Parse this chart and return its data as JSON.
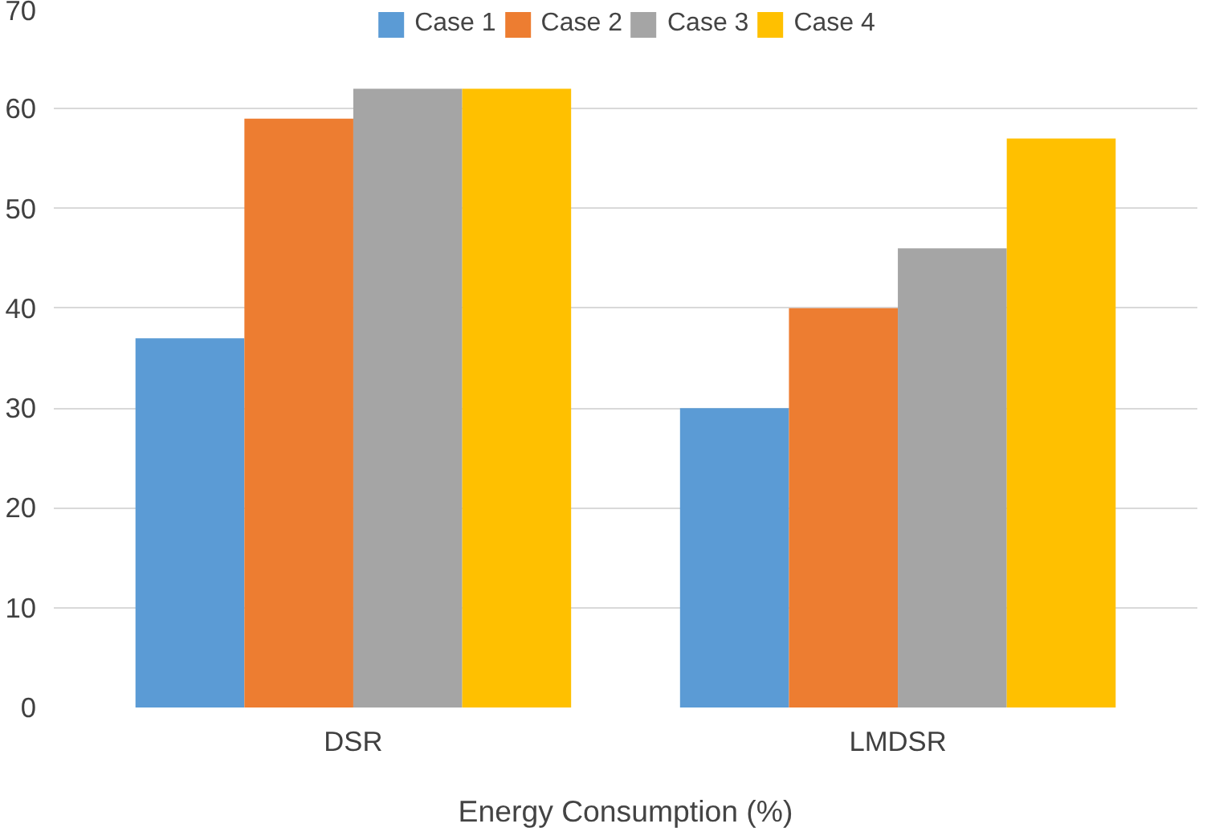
{
  "chart_data": {
    "type": "bar",
    "xlabel": "Energy Consumption (%)",
    "categories": [
      "DSR",
      "LMDSR"
    ],
    "series": [
      {
        "name": "Case 1",
        "color": "#5b9bd5",
        "values": [
          37,
          30
        ]
      },
      {
        "name": "Case 2",
        "color": "#ed7d31",
        "values": [
          59,
          40
        ]
      },
      {
        "name": "Case 3",
        "color": "#a5a5a5",
        "values": [
          62,
          46
        ]
      },
      {
        "name": "Case 4",
        "color": "#ffc000",
        "values": [
          62,
          57
        ]
      }
    ],
    "ylim": [
      0,
      70
    ],
    "yticks": [
      0,
      10,
      20,
      30,
      40,
      50,
      60,
      70
    ],
    "grid": "y",
    "legend": "top"
  }
}
